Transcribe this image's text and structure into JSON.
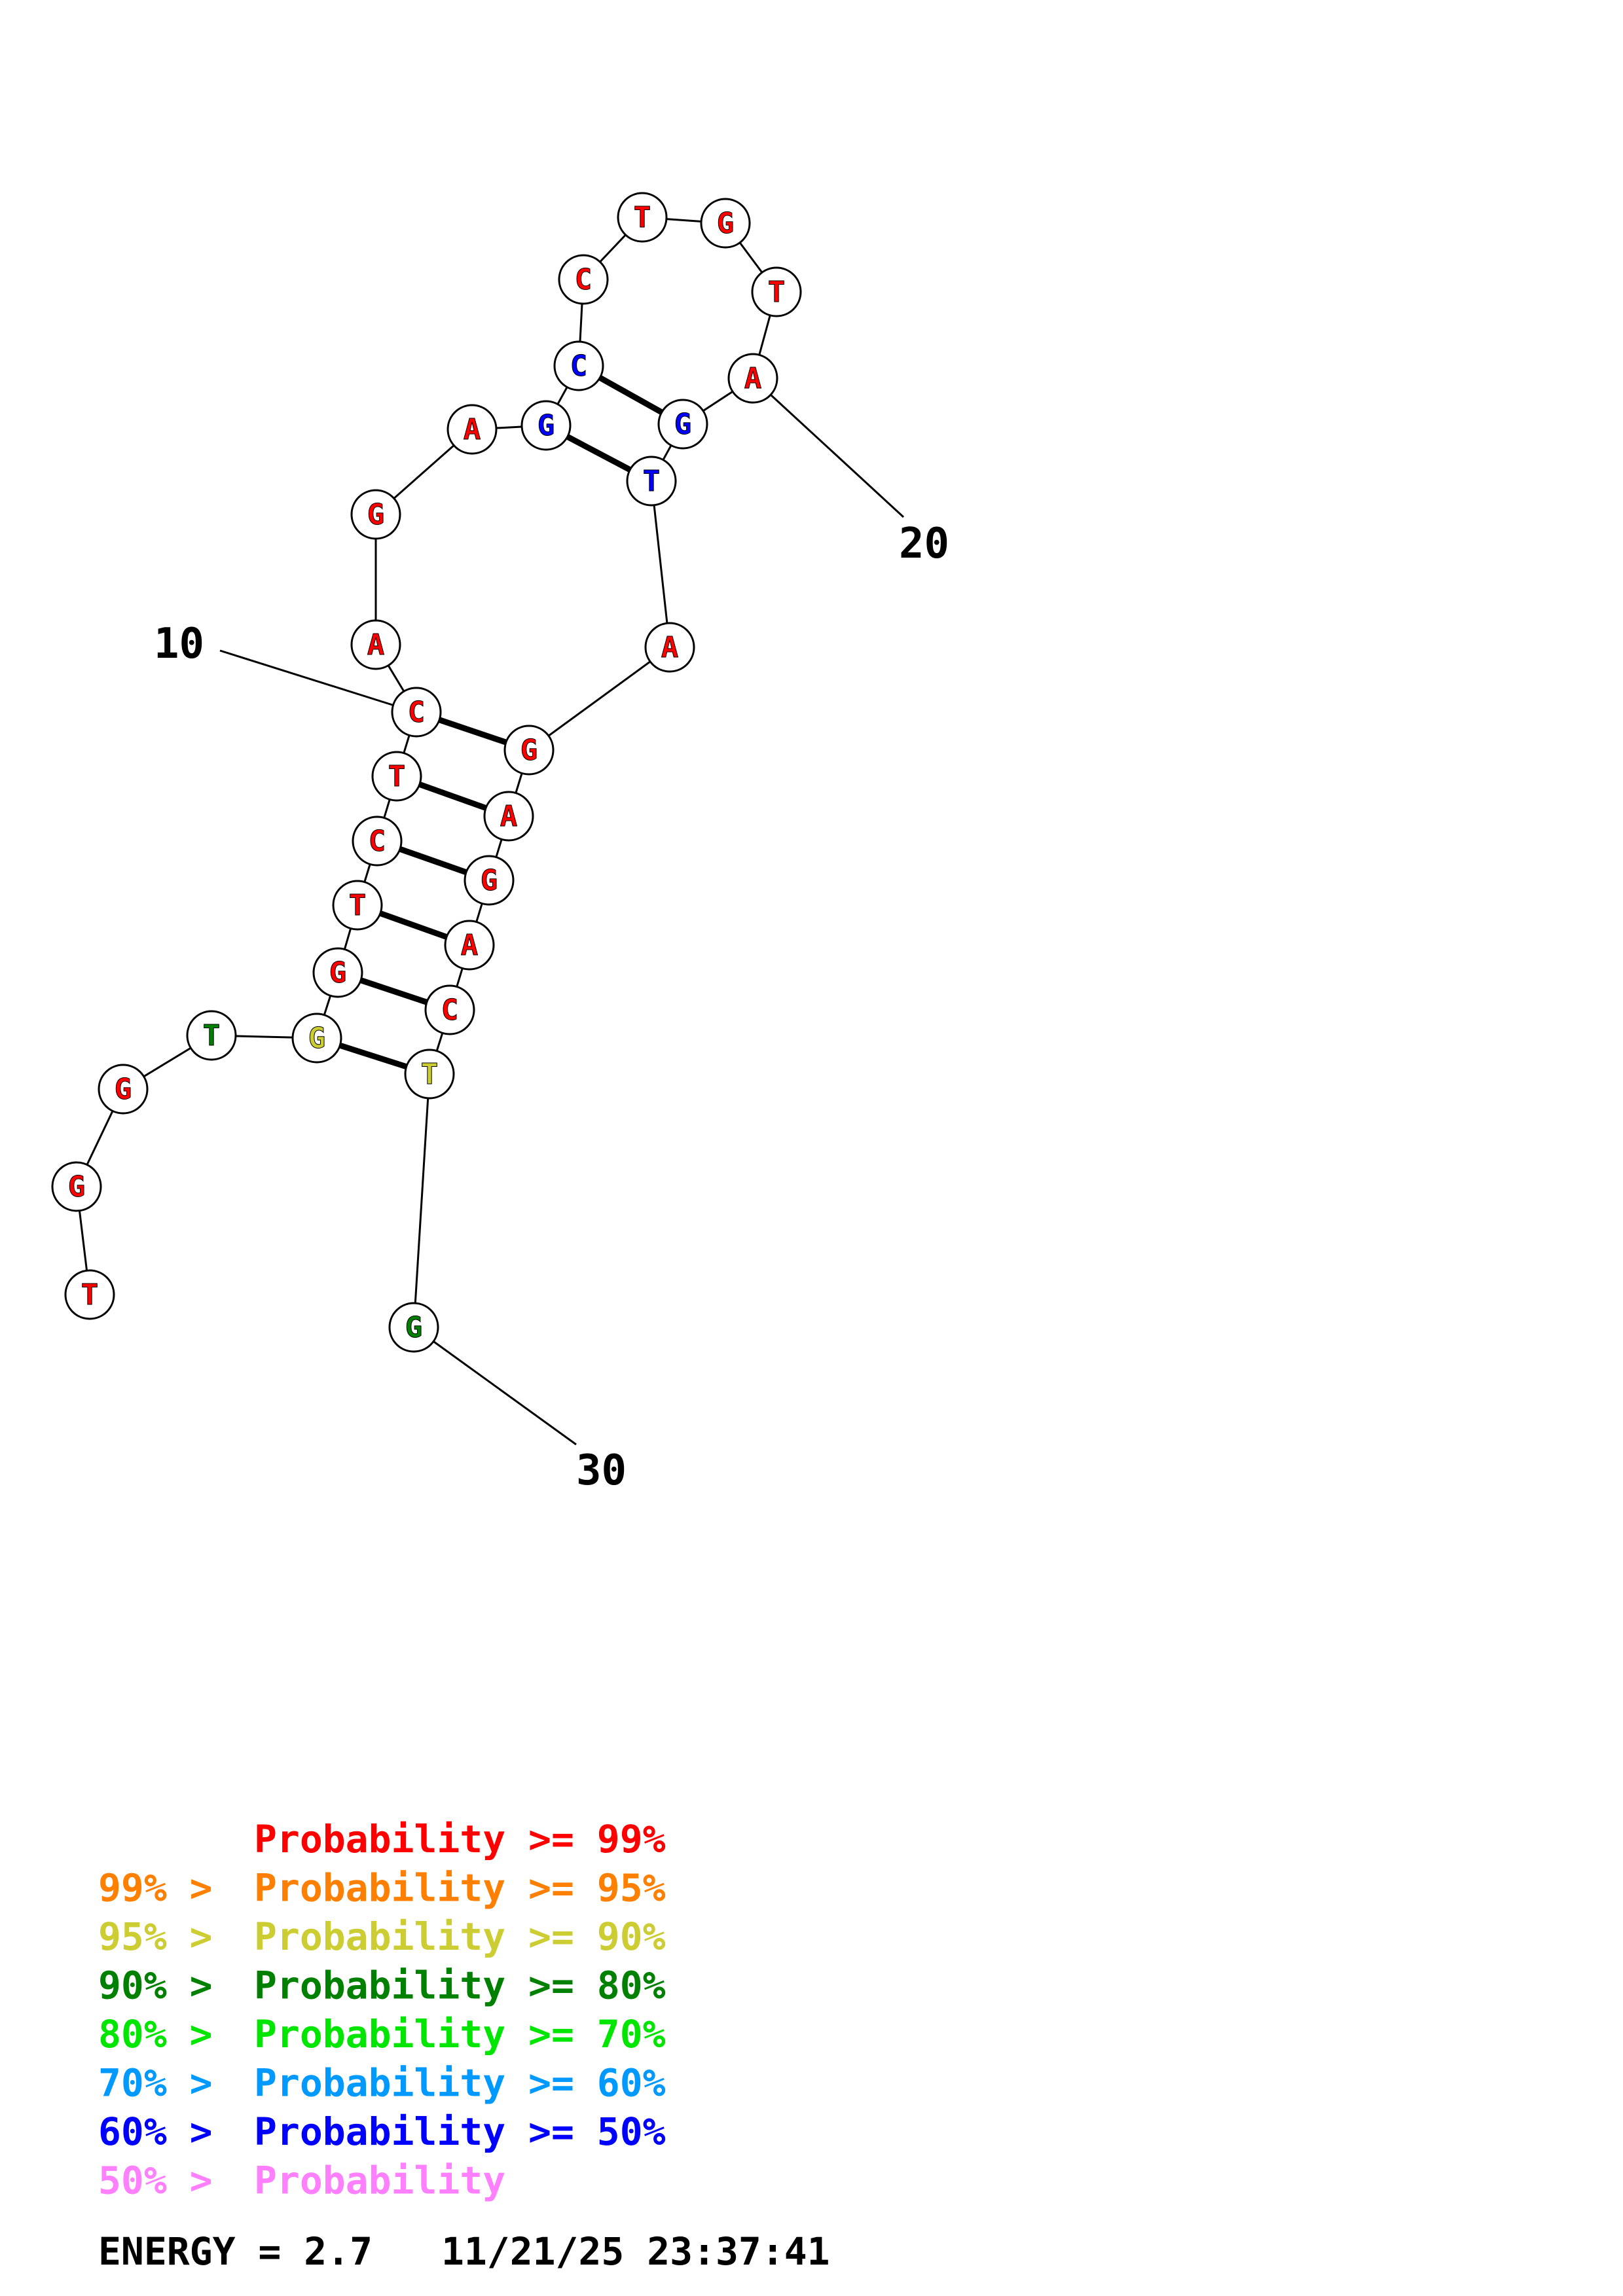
{
  "colors": {
    "p99": "#ff0000",
    "p95": "#ff7f00",
    "p90": "#cccc33",
    "p80": "#008000",
    "p70": "#00e600",
    "p60": "#0099ff",
    "p50": "#0000ff",
    "plow": "#ff80ff"
  },
  "nucleotides": [
    {
      "index": 1,
      "base": "T",
      "color": "#ff0000"
    },
    {
      "index": 2,
      "base": "G",
      "color": "#ff0000"
    },
    {
      "index": 3,
      "base": "G",
      "color": "#ff0000"
    },
    {
      "index": 4,
      "base": "T",
      "color": "#008000"
    },
    {
      "index": 5,
      "base": "G",
      "color": "#cccc33"
    },
    {
      "index": 6,
      "base": "G",
      "color": "#ff0000"
    },
    {
      "index": 7,
      "base": "T",
      "color": "#ff0000"
    },
    {
      "index": 8,
      "base": "C",
      "color": "#ff0000"
    },
    {
      "index": 9,
      "base": "T",
      "color": "#ff0000"
    },
    {
      "index": 10,
      "base": "C",
      "color": "#ff0000"
    },
    {
      "index": 11,
      "base": "A",
      "color": "#ff0000"
    },
    {
      "index": 12,
      "base": "G",
      "color": "#ff0000"
    },
    {
      "index": 13,
      "base": "A",
      "color": "#ff0000"
    },
    {
      "index": 14,
      "base": "G",
      "color": "#0000ff"
    },
    {
      "index": 15,
      "base": "C",
      "color": "#0000ff"
    },
    {
      "index": 16,
      "base": "C",
      "color": "#ff0000"
    },
    {
      "index": 17,
      "base": "T",
      "color": "#ff0000"
    },
    {
      "index": 18,
      "base": "G",
      "color": "#ff0000"
    },
    {
      "index": 19,
      "base": "T",
      "color": "#ff0000"
    },
    {
      "index": 20,
      "base": "A",
      "color": "#ff0000"
    },
    {
      "index": 21,
      "base": "G",
      "color": "#0000ff"
    },
    {
      "index": 22,
      "base": "T",
      "color": "#0000ff"
    },
    {
      "index": 23,
      "base": "A",
      "color": "#ff0000"
    },
    {
      "index": 24,
      "base": "G",
      "color": "#ff0000"
    },
    {
      "index": 25,
      "base": "A",
      "color": "#ff0000"
    },
    {
      "index": 26,
      "base": "G",
      "color": "#ff0000"
    },
    {
      "index": 27,
      "base": "A",
      "color": "#ff0000"
    },
    {
      "index": 28,
      "base": "C",
      "color": "#ff0000"
    },
    {
      "index": 29,
      "base": "T",
      "color": "#cccc33"
    },
    {
      "index": 30,
      "base": "G",
      "color": "#008000"
    }
  ],
  "pairs": [
    [
      5,
      29
    ],
    [
      6,
      28
    ],
    [
      7,
      27
    ],
    [
      8,
      26
    ],
    [
      9,
      25
    ],
    [
      10,
      24
    ],
    [
      14,
      22
    ],
    [
      15,
      21
    ]
  ],
  "number_labels": [
    {
      "index": 10,
      "text": "10"
    },
    {
      "index": 20,
      "text": "20"
    },
    {
      "index": 30,
      "text": "30"
    }
  ],
  "legend": [
    {
      "prefix": "",
      "label": "Probability >= 99%",
      "color": "#ff0000"
    },
    {
      "prefix": "99% > ",
      "label": "Probability >= 95%",
      "color": "#ff7f00"
    },
    {
      "prefix": "95% > ",
      "label": "Probability >= 90%",
      "color": "#cccc33"
    },
    {
      "prefix": "90% > ",
      "label": "Probability >= 80%",
      "color": "#008000"
    },
    {
      "prefix": "80% > ",
      "label": "Probability >= 70%",
      "color": "#00e600"
    },
    {
      "prefix": "70% > ",
      "label": "Probability >= 60%",
      "color": "#0099ff"
    },
    {
      "prefix": "60% > ",
      "label": "Probability >= 50%",
      "color": "#0000ff"
    },
    {
      "prefix": "50% > ",
      "label": "Probability",
      "color": "#ff80ff"
    }
  ],
  "footer": {
    "energy": "ENERGY = 2.7",
    "timestamp": "11/21/25 23:37:41"
  }
}
